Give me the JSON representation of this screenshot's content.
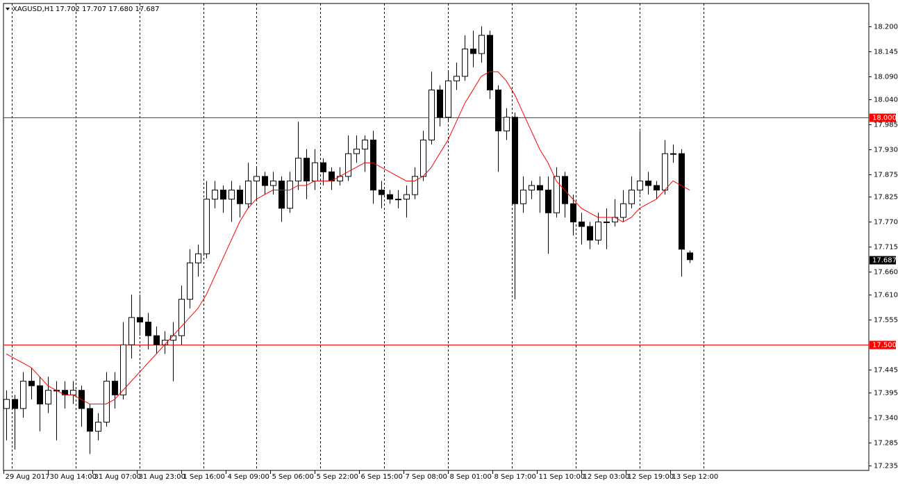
{
  "header": {
    "symbol": "XAGUSD,H1",
    "quote": "17.702 17.707 17.680 17.687"
  },
  "chart_data": {
    "type": "candlestick",
    "x": [
      1,
      4,
      7,
      10,
      13,
      16,
      19,
      22,
      25,
      28,
      31,
      34,
      37,
      40,
      43,
      46,
      49,
      52,
      55,
      58,
      61,
      64,
      67,
      70,
      73,
      76,
      79,
      82,
      85,
      88,
      91,
      94,
      97,
      100,
      103,
      106,
      109,
      112,
      115,
      118,
      121,
      124,
      127,
      130,
      133,
      136,
      139,
      142,
      145,
      148,
      151,
      154,
      157,
      160,
      163,
      166,
      169,
      172,
      175,
      178,
      181,
      184,
      187,
      190,
      193,
      196,
      199,
      202,
      205,
      208,
      211,
      214,
      217,
      220,
      223,
      226,
      229,
      232,
      235,
      238,
      241,
      244,
      247
    ],
    "ohlc": [
      [
        17.36,
        17.4,
        17.29,
        17.38
      ],
      [
        17.38,
        17.39,
        17.27,
        17.36
      ],
      [
        17.36,
        17.44,
        17.34,
        17.42
      ],
      [
        17.42,
        17.45,
        17.38,
        17.41
      ],
      [
        17.41,
        17.43,
        17.31,
        17.37
      ],
      [
        17.37,
        17.43,
        17.35,
        17.4
      ],
      [
        17.4,
        17.42,
        17.29,
        17.4
      ],
      [
        17.4,
        17.42,
        17.36,
        17.39
      ],
      [
        17.39,
        17.42,
        17.37,
        17.4
      ],
      [
        17.4,
        17.41,
        17.32,
        17.36
      ],
      [
        17.36,
        17.37,
        17.26,
        17.31
      ],
      [
        17.31,
        17.35,
        17.29,
        17.33
      ],
      [
        17.33,
        17.44,
        17.32,
        17.42
      ],
      [
        17.42,
        17.44,
        17.36,
        17.39
      ],
      [
        17.39,
        17.55,
        17.38,
        17.5
      ],
      [
        17.5,
        17.61,
        17.47,
        17.56
      ],
      [
        17.56,
        17.61,
        17.52,
        17.55
      ],
      [
        17.55,
        17.57,
        17.49,
        17.52
      ],
      [
        17.52,
        17.54,
        17.48,
        17.5
      ],
      [
        17.5,
        17.53,
        17.48,
        17.51
      ],
      [
        17.51,
        17.55,
        17.42,
        17.52
      ],
      [
        17.52,
        17.63,
        17.5,
        17.6
      ],
      [
        17.6,
        17.71,
        17.58,
        17.68
      ],
      [
        17.68,
        17.72,
        17.65,
        17.7
      ],
      [
        17.7,
        17.86,
        17.69,
        17.82
      ],
      [
        17.82,
        17.86,
        17.8,
        17.84
      ],
      [
        17.84,
        17.85,
        17.79,
        17.82
      ],
      [
        17.82,
        17.86,
        17.77,
        17.84
      ],
      [
        17.84,
        17.85,
        17.78,
        17.81
      ],
      [
        17.81,
        17.9,
        17.8,
        17.86
      ],
      [
        17.86,
        17.89,
        17.82,
        17.87
      ],
      [
        17.87,
        17.88,
        17.83,
        17.85
      ],
      [
        17.85,
        17.88,
        17.83,
        17.86
      ],
      [
        17.86,
        17.87,
        17.77,
        17.8
      ],
      [
        17.8,
        17.88,
        17.79,
        17.86
      ],
      [
        17.86,
        17.99,
        17.84,
        17.91
      ],
      [
        17.91,
        17.93,
        17.82,
        17.86
      ],
      [
        17.86,
        17.93,
        17.84,
        17.9
      ],
      [
        17.9,
        17.91,
        17.85,
        17.88
      ],
      [
        17.88,
        17.89,
        17.84,
        17.86
      ],
      [
        17.86,
        17.89,
        17.85,
        17.87
      ],
      [
        17.87,
        17.96,
        17.86,
        17.92
      ],
      [
        17.92,
        17.96,
        17.9,
        17.93
      ],
      [
        17.93,
        17.96,
        17.88,
        17.95
      ],
      [
        17.95,
        17.97,
        17.81,
        17.84
      ],
      [
        17.84,
        17.86,
        17.8,
        17.83
      ],
      [
        17.83,
        17.84,
        17.81,
        17.82
      ],
      [
        17.82,
        17.84,
        17.8,
        17.82
      ],
      [
        17.82,
        17.85,
        17.78,
        17.83
      ],
      [
        17.83,
        17.89,
        17.82,
        17.87
      ],
      [
        17.87,
        17.97,
        17.86,
        17.95
      ],
      [
        17.95,
        18.1,
        17.94,
        18.06
      ],
      [
        18.06,
        18.07,
        17.98,
        18.0
      ],
      [
        18.0,
        18.1,
        17.99,
        18.08
      ],
      [
        18.08,
        18.12,
        18.06,
        18.09
      ],
      [
        18.09,
        18.18,
        18.08,
        18.15
      ],
      [
        18.15,
        18.19,
        18.11,
        18.14
      ],
      [
        18.14,
        18.2,
        18.12,
        18.18
      ],
      [
        18.18,
        18.19,
        18.04,
        18.06
      ],
      [
        18.06,
        18.07,
        17.88,
        17.97
      ],
      [
        17.97,
        18.02,
        17.95,
        18.0
      ],
      [
        18.0,
        18.01,
        17.6,
        17.81
      ],
      [
        17.81,
        17.87,
        17.79,
        17.84
      ],
      [
        17.84,
        17.86,
        17.82,
        17.85
      ],
      [
        17.85,
        17.87,
        17.79,
        17.84
      ],
      [
        17.84,
        17.87,
        17.7,
        17.79
      ],
      [
        17.79,
        17.89,
        17.78,
        17.87
      ],
      [
        17.87,
        17.88,
        17.78,
        17.81
      ],
      [
        17.81,
        17.83,
        17.74,
        17.77
      ],
      [
        17.77,
        17.79,
        17.72,
        17.76
      ],
      [
        17.76,
        17.77,
        17.71,
        17.73
      ],
      [
        17.73,
        17.79,
        17.72,
        17.77
      ],
      [
        17.77,
        17.8,
        17.71,
        17.77
      ],
      [
        17.77,
        17.82,
        17.76,
        17.78
      ],
      [
        17.78,
        17.84,
        17.77,
        17.81
      ],
      [
        17.81,
        17.87,
        17.8,
        17.84
      ],
      [
        17.84,
        17.97,
        17.83,
        17.86
      ],
      [
        17.86,
        17.88,
        17.83,
        17.85
      ],
      [
        17.85,
        17.86,
        17.82,
        17.84
      ],
      [
        17.84,
        17.95,
        17.83,
        17.92
      ],
      [
        17.92,
        17.94,
        17.9,
        17.92
      ],
      [
        17.92,
        17.93,
        17.65,
        17.71
      ],
      [
        17.702,
        17.707,
        17.68,
        17.687
      ]
    ],
    "ma": {
      "color": "#ff0000",
      "values": [
        17.48,
        17.47,
        17.46,
        17.45,
        17.43,
        17.41,
        17.4,
        17.39,
        17.39,
        17.38,
        17.37,
        17.37,
        17.37,
        17.38,
        17.4,
        17.42,
        17.44,
        17.46,
        17.48,
        17.5,
        17.52,
        17.54,
        17.56,
        17.58,
        17.61,
        17.65,
        17.69,
        17.73,
        17.77,
        17.8,
        17.82,
        17.83,
        17.84,
        17.84,
        17.84,
        17.85,
        17.85,
        17.86,
        17.86,
        17.86,
        17.87,
        17.88,
        17.89,
        17.9,
        17.9,
        17.89,
        17.88,
        17.87,
        17.86,
        17.86,
        17.87,
        17.89,
        17.92,
        17.95,
        17.99,
        18.03,
        18.06,
        18.09,
        18.1,
        18.1,
        18.08,
        18.05,
        18.01,
        17.97,
        17.93,
        17.9,
        17.86,
        17.84,
        17.82,
        17.8,
        17.79,
        17.78,
        17.78,
        17.78,
        17.77,
        17.78,
        17.8,
        17.81,
        17.82,
        17.84,
        17.86,
        17.85,
        17.84
      ]
    },
    "up_color": "#ffffff",
    "down_color": "#000000",
    "outline_color": "#000000",
    "xlim": [
      0,
      311.5
    ],
    "ylim": [
      17.224,
      18.25
    ],
    "xticks": [
      {
        "value": 0,
        "label": "29 Aug 2017"
      },
      {
        "value": 16,
        "label": "30 Aug 14:00"
      },
      {
        "value": 32,
        "label": "31 Aug 07:00"
      },
      {
        "value": 48,
        "label": "31 Aug 23:00"
      },
      {
        "value": 64,
        "label": "1 Sep 16:00"
      },
      {
        "value": 80,
        "label": "4 Sep 09:00"
      },
      {
        "value": 96,
        "label": "5 Sep 06:00"
      },
      {
        "value": 112,
        "label": "5 Sep 22:00"
      },
      {
        "value": 128,
        "label": "6 Sep 15:00"
      },
      {
        "value": 144,
        "label": "7 Sep 08:00"
      },
      {
        "value": 160,
        "label": "8 Sep 01:00"
      },
      {
        "value": 176,
        "label": "8 Sep 17:00"
      },
      {
        "value": 192,
        "label": "11 Sep 10:00"
      },
      {
        "value": 208,
        "label": "12 Sep 03:00"
      },
      {
        "value": 224,
        "label": "12 Sep 19:00"
      },
      {
        "value": 240,
        "label": "13 Sep 12:00"
      }
    ],
    "yticks": [
      {
        "value": 18.2,
        "label": "18.200"
      },
      {
        "value": 18.145,
        "label": "18.145"
      },
      {
        "value": 18.09,
        "label": "18.090"
      },
      {
        "value": 18.04,
        "label": "18.040"
      },
      {
        "value": 17.985,
        "label": "17.985"
      },
      {
        "value": 17.93,
        "label": "17.930"
      },
      {
        "value": 17.875,
        "label": "17.875"
      },
      {
        "value": 17.825,
        "label": "17.825"
      },
      {
        "value": 17.77,
        "label": "17.770"
      },
      {
        "value": 17.715,
        "label": "17.715"
      },
      {
        "value": 17.66,
        "label": "17.660"
      },
      {
        "value": 17.61,
        "label": "17.610"
      },
      {
        "value": 17.555,
        "label": "17.555"
      },
      {
        "value": 17.445,
        "label": "17.445"
      },
      {
        "value": 17.395,
        "label": "17.395"
      },
      {
        "value": 17.34,
        "label": "17.340"
      },
      {
        "value": 17.285,
        "label": "17.285"
      },
      {
        "value": 17.235,
        "label": "17.235"
      }
    ],
    "separators": [
      3,
      26,
      49,
      72,
      91,
      114,
      137,
      160,
      183,
      206,
      229,
      252
    ],
    "hlines": {
      "color": "#ff0000",
      "levels": [
        {
          "value": 18.0,
          "label": "18.000"
        },
        {
          "value": 17.5,
          "label": "17.500"
        }
      ]
    },
    "last_price": 17.687
  }
}
